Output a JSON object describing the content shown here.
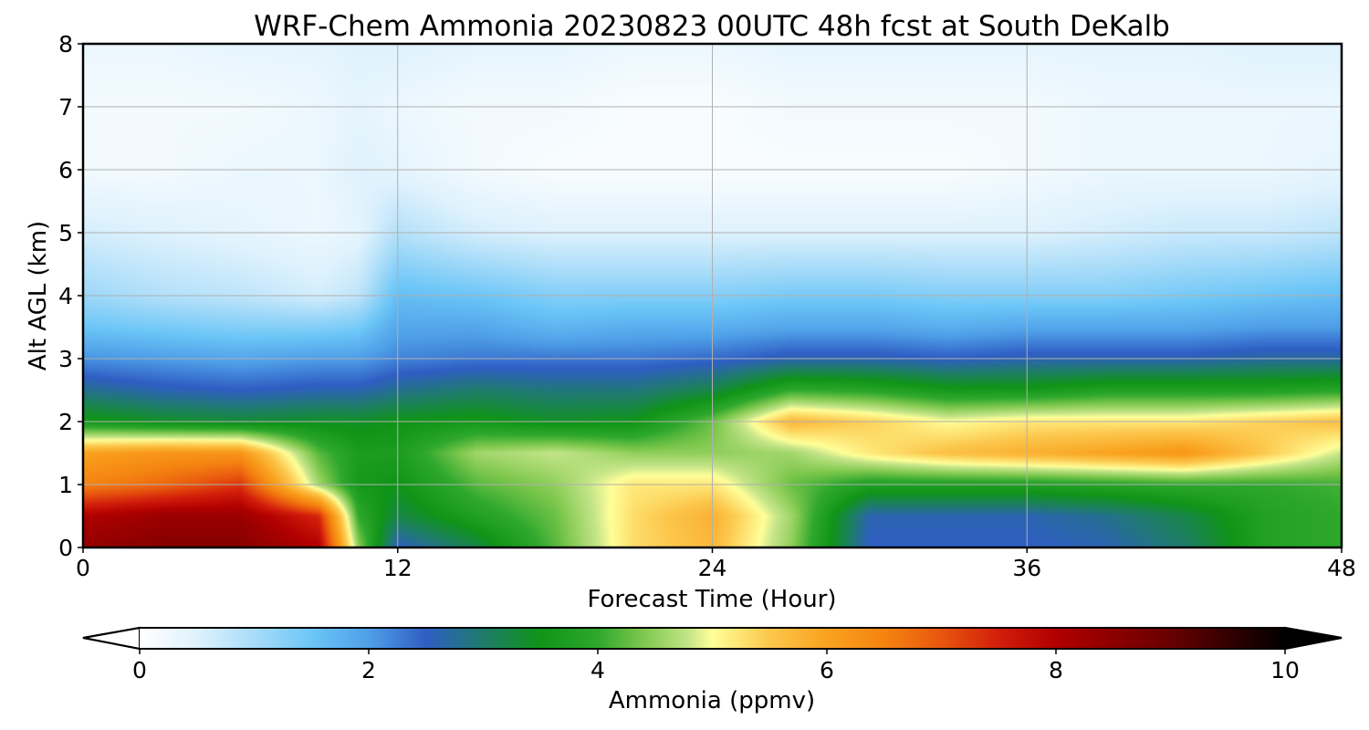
{
  "chart_data": {
    "type": "heatmap",
    "title": "WRF-Chem Ammonia  20230823 00UTC 48h fcst at South DeKalb",
    "xlabel": "Forecast Time (Hour)",
    "ylabel": "Alt AGL (km)",
    "xlim": [
      0,
      48
    ],
    "ylim": [
      0,
      8
    ],
    "xticks": [
      0,
      12,
      24,
      36,
      48
    ],
    "yticks": [
      0,
      1,
      2,
      3,
      4,
      5,
      6,
      7,
      8
    ],
    "grid": true,
    "colorbar": {
      "label": "Ammonia  (ppmv)",
      "min": 0,
      "max": 10,
      "ticks": [
        0,
        2,
        4,
        6,
        8,
        10
      ],
      "extend": "both",
      "colors": [
        {
          "v": 0.0,
          "c": "#ffffff"
        },
        {
          "v": 0.5,
          "c": "#dff2fd"
        },
        {
          "v": 1.0,
          "c": "#a8dcf9"
        },
        {
          "v": 1.5,
          "c": "#6cc6f7"
        },
        {
          "v": 2.0,
          "c": "#4f9fe8"
        },
        {
          "v": 2.5,
          "c": "#2f5ec4"
        },
        {
          "v": 3.0,
          "c": "#1e7c6a"
        },
        {
          "v": 3.5,
          "c": "#109418"
        },
        {
          "v": 4.0,
          "c": "#2ea82d"
        },
        {
          "v": 4.4,
          "c": "#7fc84e"
        },
        {
          "v": 4.8,
          "c": "#c5e589"
        },
        {
          "v": 5.0,
          "c": "#ffff99"
        },
        {
          "v": 5.5,
          "c": "#fcc74c"
        },
        {
          "v": 6.0,
          "c": "#f9a21f"
        },
        {
          "v": 6.5,
          "c": "#f58411"
        },
        {
          "v": 7.0,
          "c": "#e8560e"
        },
        {
          "v": 7.5,
          "c": "#d21e0b"
        },
        {
          "v": 8.0,
          "c": "#b10000"
        },
        {
          "v": 9.0,
          "c": "#680000"
        },
        {
          "v": 10.0,
          "c": "#000000"
        }
      ]
    },
    "x_hours": [
      0,
      3,
      6,
      9,
      10.5,
      12,
      15,
      18,
      21,
      24,
      27,
      30,
      33,
      36,
      39,
      42,
      45,
      48
    ],
    "z_km": [
      0,
      0.5,
      1,
      1.5,
      2,
      2.5,
      3,
      3.5,
      4,
      5,
      6,
      7,
      8
    ],
    "values": [
      [
        8.4,
        8.6,
        8.6,
        8.0,
        4.5,
        2.5,
        3.2,
        4.2,
        5.3,
        5.7,
        4.5,
        2.5,
        2.5,
        2.5,
        2.6,
        3.0,
        3.8,
        4.0
      ],
      [
        8.0,
        8.3,
        8.3,
        7.4,
        4.0,
        3.2,
        3.8,
        4.3,
        5.3,
        5.8,
        4.6,
        2.6,
        2.6,
        2.6,
        2.8,
        3.2,
        3.8,
        4.0
      ],
      [
        6.5,
        6.8,
        7.3,
        4.6,
        3.6,
        3.5,
        4.2,
        4.5,
        5.2,
        5.2,
        4.3,
        3.8,
        3.8,
        3.8,
        3.9,
        4.0,
        4.0,
        4.1
      ],
      [
        6.0,
        6.2,
        6.2,
        4.2,
        3.7,
        3.7,
        4.6,
        4.8,
        4.5,
        4.5,
        4.6,
        5.2,
        5.6,
        5.8,
        6.0,
        6.2,
        5.5,
        4.8
      ],
      [
        3.6,
        3.4,
        3.3,
        3.4,
        3.4,
        3.5,
        3.6,
        3.4,
        3.5,
        4.3,
        5.7,
        5.4,
        5.0,
        5.2,
        5.2,
        5.2,
        5.4,
        5.6
      ],
      [
        2.8,
        2.6,
        2.5,
        2.6,
        2.6,
        2.8,
        3.0,
        2.9,
        2.9,
        3.2,
        4.0,
        3.9,
        3.6,
        3.6,
        3.8,
        3.8,
        3.8,
        3.9
      ],
      [
        2.1,
        2.0,
        1.9,
        2.0,
        2.0,
        2.2,
        2.3,
        2.3,
        2.3,
        2.4,
        2.6,
        2.6,
        2.5,
        2.6,
        2.6,
        2.6,
        2.7,
        2.7
      ],
      [
        1.5,
        1.4,
        1.3,
        1.3,
        1.4,
        1.9,
        1.9,
        1.7,
        1.8,
        1.8,
        1.9,
        1.9,
        1.8,
        1.9,
        1.9,
        1.9,
        2.0,
        2.0
      ],
      [
        1.1,
        0.9,
        0.8,
        0.6,
        0.8,
        1.6,
        1.5,
        1.3,
        1.3,
        1.3,
        1.4,
        1.4,
        1.3,
        1.3,
        1.3,
        1.4,
        1.5,
        1.6
      ],
      [
        0.6,
        0.5,
        0.4,
        0.3,
        0.4,
        0.9,
        0.6,
        0.5,
        0.5,
        0.5,
        0.5,
        0.5,
        0.5,
        0.5,
        0.6,
        0.7,
        0.7,
        0.8
      ],
      [
        0.2,
        0.2,
        0.3,
        0.3,
        0.5,
        0.4,
        0.2,
        0.1,
        0.1,
        0.1,
        0.1,
        0.1,
        0.1,
        0.2,
        0.3,
        0.3,
        0.3,
        0.4
      ],
      [
        0.2,
        0.2,
        0.2,
        0.3,
        0.4,
        0.3,
        0.2,
        0.2,
        0.1,
        0.1,
        0.2,
        0.2,
        0.2,
        0.2,
        0.3,
        0.3,
        0.3,
        0.3
      ],
      [
        0.3,
        0.3,
        0.4,
        0.4,
        0.5,
        0.5,
        0.4,
        0.4,
        0.3,
        0.3,
        0.4,
        0.4,
        0.4,
        0.4,
        0.4,
        0.4,
        0.5,
        0.5
      ]
    ]
  }
}
